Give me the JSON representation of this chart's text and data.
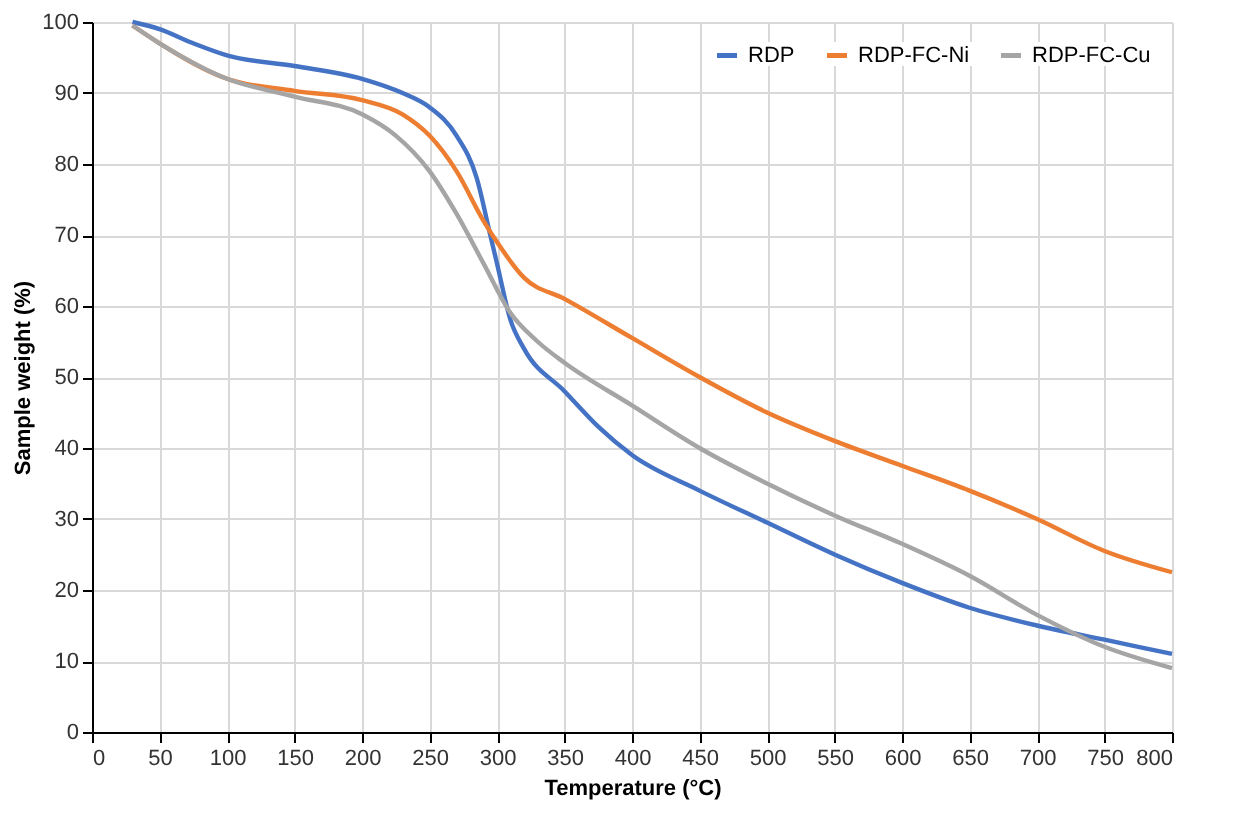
{
  "chart_data": {
    "type": "line",
    "xlabel": "Temperature (°C)",
    "ylabel": "Sample weight (%)",
    "xlim": [
      0,
      800
    ],
    "xticks": [
      0,
      50,
      100,
      150,
      200,
      250,
      300,
      350,
      400,
      450,
      500,
      550,
      600,
      650,
      700,
      750,
      800
    ],
    "ylim": [
      0,
      100
    ],
    "yticks": [
      0,
      10,
      20,
      30,
      40,
      50,
      60,
      70,
      80,
      90,
      100
    ],
    "grid": true,
    "legend": "top right",
    "series": [
      {
        "name": "RDP",
        "color": "#4472c4",
        "x": [
          30,
          50,
          75,
          100,
          150,
          200,
          230,
          250,
          270,
          285,
          295,
          300,
          310,
          320,
          350,
          375,
          400,
          450,
          500,
          550,
          600,
          650,
          700,
          750,
          800
        ],
        "values": [
          100,
          99,
          97,
          95.3,
          93.8,
          92,
          90,
          88,
          84,
          78,
          70,
          66,
          58,
          54,
          48,
          43,
          39,
          34,
          29.5,
          25,
          21,
          17.5,
          15,
          13,
          11
        ]
      },
      {
        "name": "RDP-FC-Ni",
        "color": "#ed7d31",
        "x": [
          30,
          50,
          100,
          150,
          200,
          230,
          250,
          270,
          290,
          300,
          320,
          350,
          400,
          450,
          500,
          550,
          600,
          650,
          700,
          750,
          800
        ],
        "values": [
          99.5,
          97,
          92,
          90.3,
          89,
          87,
          84,
          79,
          72,
          69,
          64,
          61,
          55.5,
          50,
          45,
          41,
          37.5,
          34,
          30,
          25.5,
          22.5
        ]
      },
      {
        "name": "RDP-FC-Cu",
        "color": "#a5a5a5",
        "x": [
          30,
          50,
          100,
          150,
          200,
          225,
          250,
          270,
          290,
          310,
          330,
          350,
          400,
          450,
          500,
          550,
          600,
          650,
          700,
          750,
          800
        ],
        "values": [
          99.5,
          97,
          92,
          89.5,
          87,
          84,
          79,
          73,
          66,
          59,
          55,
          52,
          46,
          40,
          35,
          30.5,
          26.5,
          22,
          16.5,
          12,
          9
        ]
      }
    ]
  }
}
